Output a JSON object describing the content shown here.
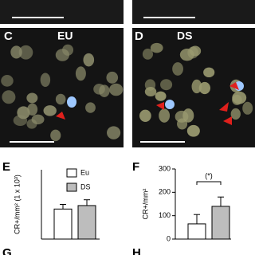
{
  "panels": {
    "c": {
      "letter": "C",
      "label": "EU"
    },
    "d": {
      "letter": "D",
      "label": "DS"
    },
    "e": {
      "letter": "E"
    },
    "f": {
      "letter": "F"
    },
    "g": {
      "letter": "G"
    },
    "h": {
      "letter": "H"
    }
  },
  "chart_data": [
    {
      "type": "bar",
      "ylabel": "CR+/mm² (1 x 10³)",
      "categories": [
        "Eu",
        "DS"
      ],
      "values": [
        1.3,
        1.45
      ],
      "errors": [
        0.2,
        0.25
      ],
      "colors": [
        "#ffffff",
        "#bdbdbd"
      ],
      "ylim": [
        0,
        3
      ],
      "legend": "top-left"
    },
    {
      "type": "bar",
      "ylabel": "CR+/mm²",
      "categories": [
        "Eu",
        "DS"
      ],
      "values": [
        65,
        140
      ],
      "errors": [
        40,
        40
      ],
      "colors": [
        "#ffffff",
        "#bdbdbd"
      ],
      "ylim": [
        0,
        300
      ],
      "yticks": [
        0,
        100,
        200,
        300
      ],
      "annotation": "(*)"
    }
  ]
}
